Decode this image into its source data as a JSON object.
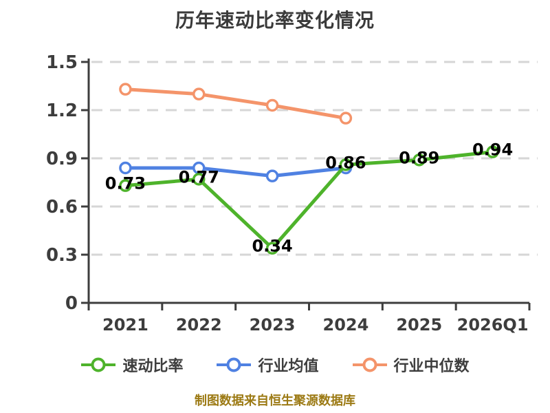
{
  "page": {
    "title": "历年速动比率变化情况",
    "footer": "制图数据来自恒生聚源数据库"
  },
  "chart_data": {
    "type": "line",
    "title": "历年速动比率变化情况",
    "categories": [
      "2021",
      "2022",
      "2023",
      "2024",
      "2025",
      "2026Q1"
    ],
    "series": [
      {
        "name": "速动比率",
        "color": "#4eb32b",
        "values": [
          0.73,
          0.77,
          0.34,
          0.86,
          0.89,
          0.94
        ],
        "point_labels": [
          "0.73",
          "0.77",
          "0.34",
          "0.86",
          "0.89",
          "0.94"
        ]
      },
      {
        "name": "行业均值",
        "color": "#4f81e2",
        "values": [
          0.84,
          0.84,
          0.79,
          0.84
        ],
        "point_labels": null
      },
      {
        "name": "行业中位数",
        "color": "#f4946a",
        "values": [
          1.33,
          1.3,
          1.23,
          1.15
        ],
        "point_labels": null
      }
    ],
    "xlabel": "",
    "ylabel": "",
    "ylim": [
      0,
      1.5
    ],
    "y_ticks": [
      0,
      0.3,
      0.6,
      0.9,
      1.2,
      1.5
    ],
    "y_tick_labels": [
      "0",
      "0.3",
      "0.6",
      "0.9",
      "1.2",
      "1.5"
    ],
    "grid": "horizontal-dashed",
    "legend_position": "bottom",
    "marker_style": "circle-white-fill"
  },
  "legend": {
    "items": [
      {
        "label": "速动比率",
        "color": "#4eb32b"
      },
      {
        "label": "行业均值",
        "color": "#4f81e2"
      },
      {
        "label": "行业中位数",
        "color": "#f4946a"
      }
    ]
  },
  "style": {
    "axis_color": "#3d3d3d",
    "grid_color": "#d6d6d6",
    "tick_label_color": "#3d3d3d",
    "data_label_color": "#000000",
    "title_color": "#3a3a3a",
    "footer_color": "#9c7a14"
  }
}
